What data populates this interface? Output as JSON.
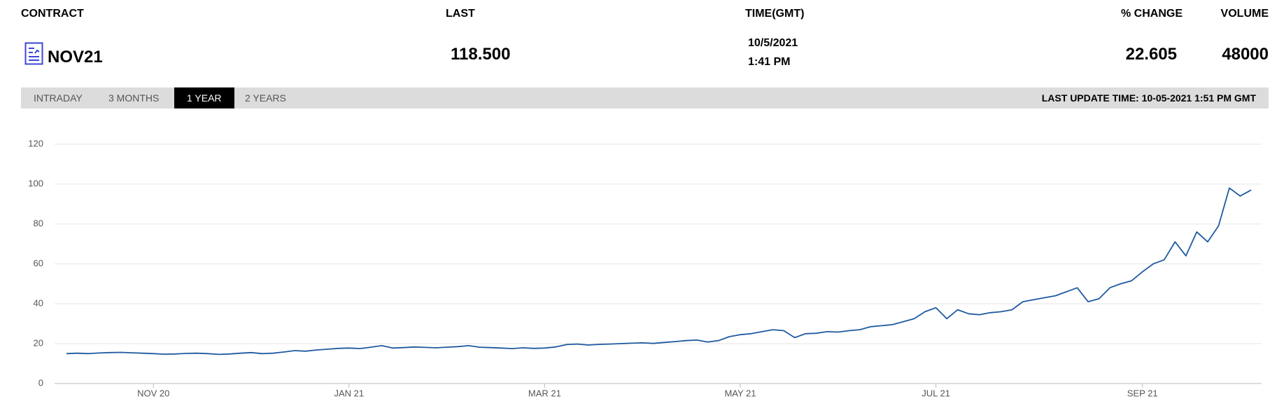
{
  "header": {
    "columns": [
      "CONTRACT",
      "LAST",
      "TIME(GMT)",
      "% CHANGE",
      "VOLUME"
    ]
  },
  "quote": {
    "contract": "NOV21",
    "last": "118.500",
    "date": "10/5/2021",
    "time": "1:41 PM",
    "change": "22.605",
    "volume": "48000"
  },
  "tabs": [
    "INTRADAY",
    "3 MONTHS",
    "1 YEAR",
    "2 YEARS"
  ],
  "active_tab": 2,
  "last_update": "LAST UPDATE TIME: 10-05-2021 1:51 PM GMT",
  "chart_data": {
    "type": "line",
    "color": "#1f5aa0",
    "grid": true,
    "ylim": [
      0,
      120
    ],
    "yticks": [
      0,
      20,
      40,
      60,
      80,
      100,
      120
    ],
    "categories": [
      null,
      null,
      null,
      null,
      null,
      null,
      null,
      null,
      "NOV 20",
      null,
      null,
      null,
      null,
      null,
      null,
      null,
      null,
      null,
      null,
      null,
      null,
      null,
      null,
      null,
      null,
      null,
      "JAN 21",
      null,
      null,
      null,
      null,
      null,
      null,
      null,
      null,
      null,
      null,
      null,
      null,
      null,
      null,
      null,
      null,
      null,
      "MAR 21",
      null,
      null,
      null,
      null,
      null,
      null,
      null,
      null,
      null,
      null,
      null,
      null,
      null,
      null,
      null,
      null,
      null,
      "MAY 21",
      null,
      null,
      null,
      null,
      null,
      null,
      null,
      null,
      null,
      null,
      null,
      null,
      null,
      null,
      null,
      null,
      null,
      "JUL 21",
      null,
      null,
      null,
      null,
      null,
      null,
      null,
      null,
      null,
      null,
      null,
      null,
      null,
      null,
      null,
      null,
      null,
      null,
      "SEP 21",
      null,
      null,
      null,
      null,
      null,
      null,
      null,
      null,
      null,
      null
    ],
    "values": [
      15,
      15.2,
      15,
      15.3,
      15.5,
      15.6,
      15.4,
      15.2,
      15,
      14.7,
      14.8,
      15.1,
      15.2,
      15,
      14.6,
      14.8,
      15.2,
      15.5,
      15,
      15.2,
      15.8,
      16.5,
      16.2,
      16.8,
      17.2,
      17.6,
      17.8,
      17.5,
      18.2,
      19,
      17.8,
      18,
      18.3,
      18.1,
      17.9,
      18.2,
      18.5,
      19,
      18.2,
      18,
      17.8,
      17.5,
      17.9,
      17.6,
      17.8,
      18.3,
      19.5,
      19.8,
      19.3,
      19.6,
      19.8,
      20,
      20.2,
      20.4,
      20.1,
      20.6,
      21,
      21.5,
      21.8,
      20.8,
      21.5,
      23.5,
      24.5,
      25,
      26,
      27,
      26.5,
      23,
      25,
      25.2,
      26,
      25.8,
      26.5,
      27,
      28.5,
      29,
      29.5,
      31,
      32.5,
      36,
      38,
      32.5,
      37,
      35,
      34.5,
      35.5,
      36,
      37,
      41,
      42,
      43,
      44,
      46,
      48,
      41,
      42.5,
      48,
      50,
      51.5,
      56,
      60,
      62,
      71,
      64,
      76,
      71,
      79,
      98,
      94,
      97
    ]
  }
}
